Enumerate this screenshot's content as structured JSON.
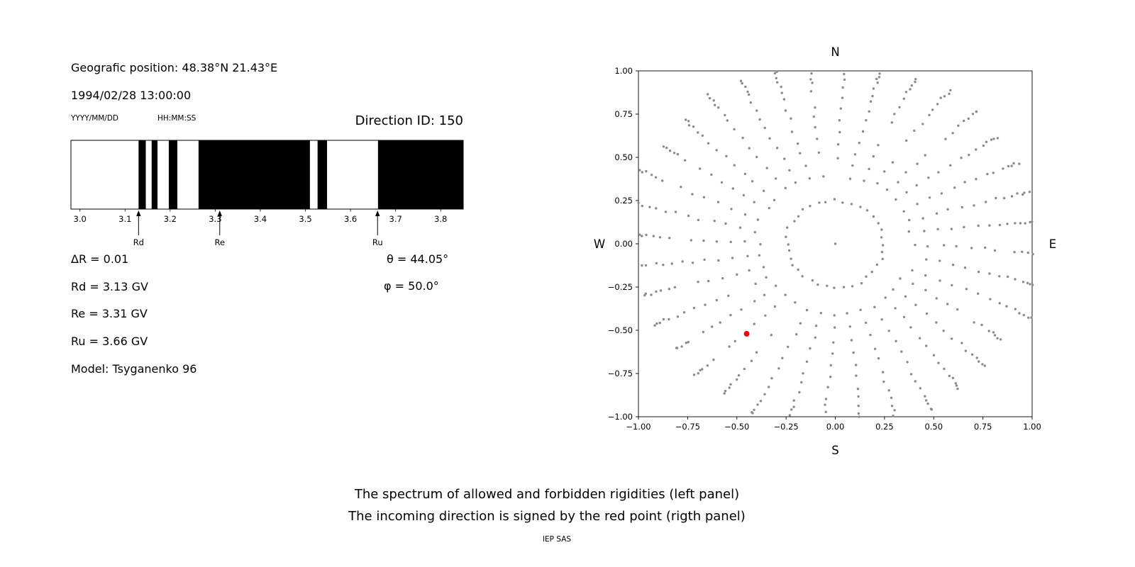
{
  "header": {
    "position": "Geografic position: 48.38°N 21.43°E",
    "datetime": "1994/02/28 13:00:00",
    "date_format_label": "YYYY/MM/DD",
    "time_format_label": "HH:MM:SS",
    "direction_id": "Direction ID: 150"
  },
  "parameters": {
    "delta_r": "ΔR = 0.01",
    "rd": "Rd = 3.13 GV",
    "re": "Re = 3.31 GV",
    "ru": "Ru = 3.66 GV",
    "model": "Model: Tsyganenko 96",
    "theta": "θ = 44.05°",
    "phi": "φ = 50.0°"
  },
  "caption": {
    "line1": "The spectrum of allowed and forbidden rigidities (left panel)",
    "line2": "The incoming direction is signed by the red point (rigth panel)",
    "credit": "IEP SAS"
  },
  "chart_data": [
    {
      "id": "rigidity-spectrum",
      "type": "bar",
      "x_range": [
        2.98,
        3.85
      ],
      "x_ticks": [
        3.0,
        3.1,
        3.2,
        3.3,
        3.4,
        3.5,
        3.6,
        3.7,
        3.8
      ],
      "allowed_color": "#ffffff",
      "forbidden_color": "#000000",
      "forbidden_intervals_gv": [
        [
          3.13,
          3.146
        ],
        [
          3.159,
          3.172
        ],
        [
          3.197,
          3.216
        ],
        [
          3.263,
          3.51
        ],
        [
          3.527,
          3.548
        ],
        [
          3.661,
          3.85
        ]
      ],
      "markers": [
        {
          "label": "Rd",
          "x": 3.13
        },
        {
          "label": "Re",
          "x": 3.31
        },
        {
          "label": "Ru",
          "x": 3.66
        }
      ]
    },
    {
      "id": "asymptotic-directions",
      "type": "scatter",
      "xlim": [
        -1,
        1
      ],
      "ylim": [
        -1,
        1
      ],
      "ticks": {
        "values": [
          -1,
          -0.75,
          -0.5,
          -0.25,
          0,
          0.25,
          0.5,
          0.75,
          1
        ],
        "labels": [
          "−1.00",
          "−0.75",
          "−0.50",
          "−0.25",
          "0.00",
          "0.25",
          "0.50",
          "0.75",
          "1.00"
        ]
      },
      "compass": {
        "top": "N",
        "bottom": "S",
        "left": "W",
        "right": "E"
      },
      "dot_color": "#8a8a8a",
      "spokes": {
        "count": 36,
        "angle_step_deg": 10,
        "radii": [
          0.25,
          0.4,
          0.475,
          0.55,
          0.62,
          0.69,
          0.755,
          0.815,
          0.87,
          0.915,
          0.955,
          0.985,
          1.01,
          1.03,
          1.045
        ],
        "curve_deg_per_unit": -4,
        "center_dot": true
      },
      "red_point": {
        "x": -0.45,
        "y": -0.52,
        "color": "#ff0000"
      }
    }
  ]
}
